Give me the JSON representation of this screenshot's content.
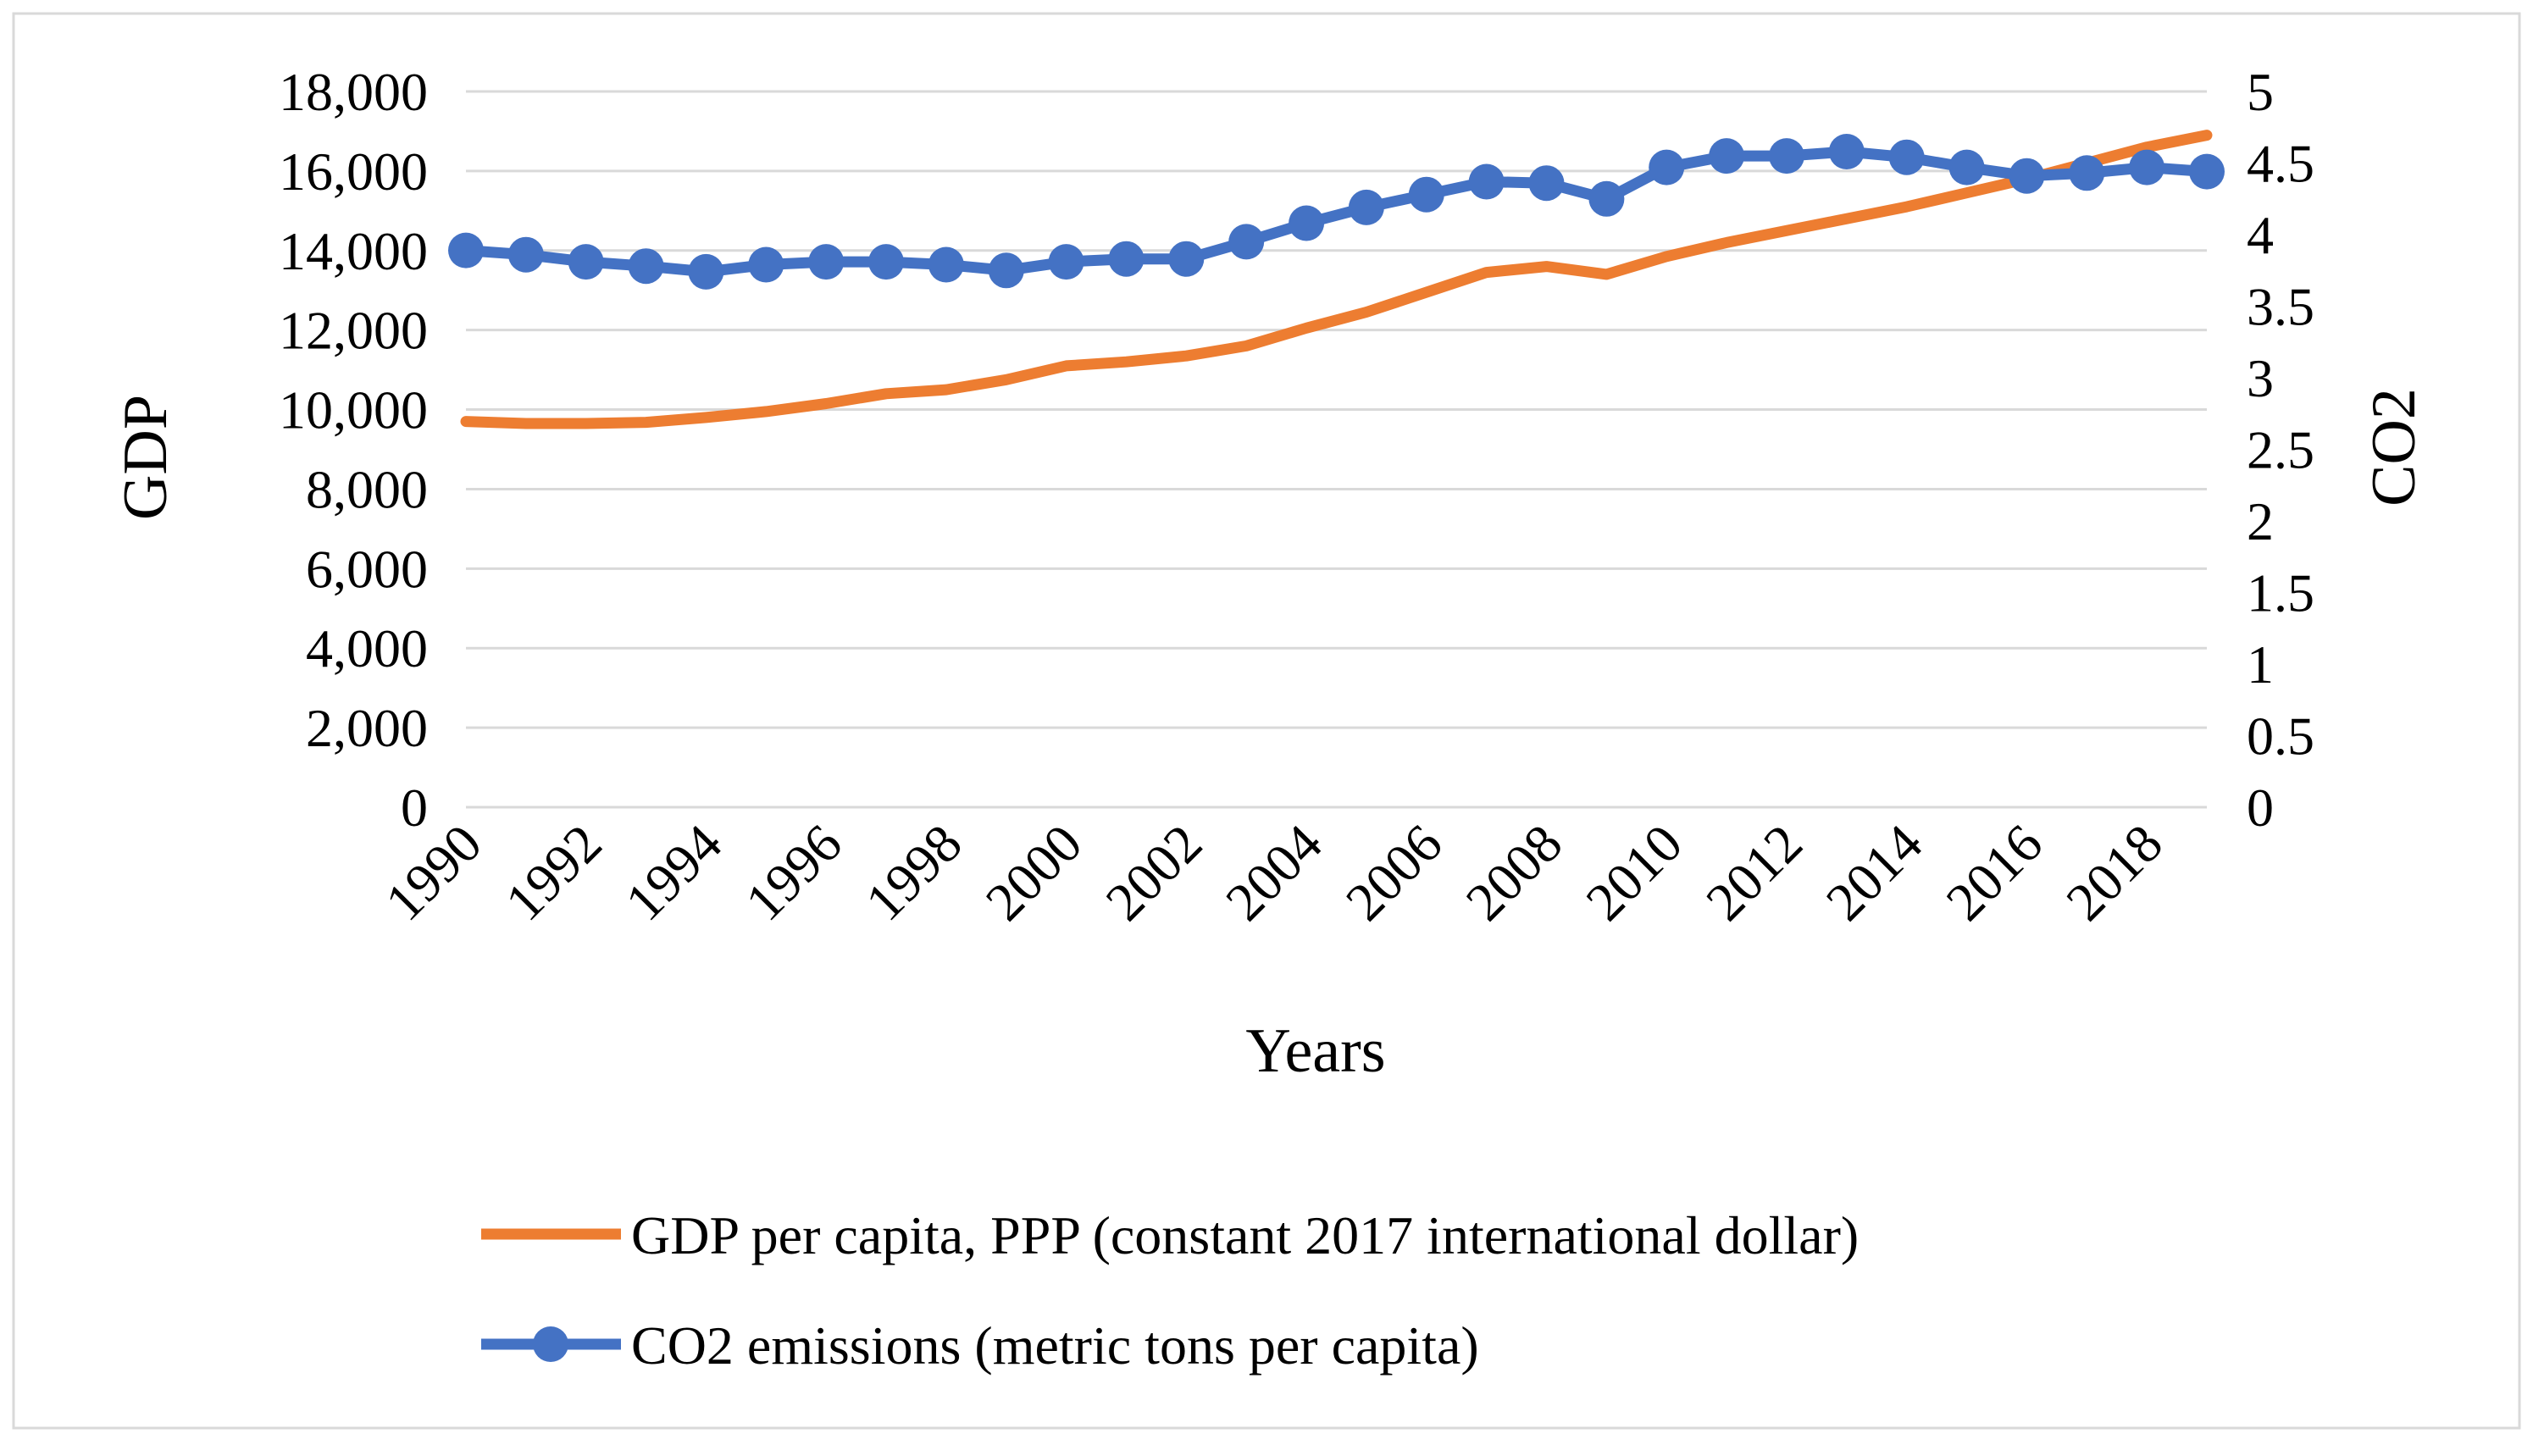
{
  "chart_data": {
    "type": "line",
    "x_label": "Years",
    "y_label_left": "GDP",
    "y_label_right": "CO2",
    "x": [
      1990,
      1991,
      1992,
      1993,
      1994,
      1995,
      1996,
      1997,
      1998,
      1999,
      2000,
      2001,
      2002,
      2003,
      2004,
      2005,
      2006,
      2007,
      2008,
      2009,
      2010,
      2011,
      2012,
      2013,
      2014,
      2015,
      2016,
      2017,
      2018,
      2019
    ],
    "x_tick_labels": [
      "1990",
      "1992",
      "1994",
      "1996",
      "1998",
      "2000",
      "2002",
      "2004",
      "2006",
      "2008",
      "2010",
      "2012",
      "2014",
      "2016",
      "2018"
    ],
    "y_left_range": [
      0,
      18000
    ],
    "y_left_ticks": [
      "0",
      "2,000",
      "4,000",
      "6,000",
      "8,000",
      "10,000",
      "12,000",
      "14,000",
      "16,000",
      "18,000"
    ],
    "y_right_range": [
      0,
      5
    ],
    "y_right_ticks": [
      "0",
      "0.5",
      "1",
      "1.5",
      "2",
      "2.5",
      "3",
      "3.5",
      "4",
      "4.5",
      "5"
    ],
    "grid": "horizontal",
    "legend_position": "bottom",
    "series": [
      {
        "name": "GDP per capita, PPP (constant 2017 international dollar)",
        "axis": "left",
        "color": "#ED7D31",
        "marker": "none",
        "values": [
          9700,
          9650,
          9650,
          9680,
          9800,
          9950,
          10150,
          10400,
          10500,
          10750,
          11100,
          11200,
          11350,
          11600,
          12050,
          12450,
          12950,
          13450,
          13600,
          13400,
          13850,
          14200,
          14500,
          14800,
          15100,
          15450,
          15800,
          16200,
          16600,
          16900
        ]
      },
      {
        "name": "CO2 emissions (metric tons per capita)",
        "axis": "right",
        "color": "#4472C4",
        "marker": "circle",
        "values": [
          3.89,
          3.86,
          3.81,
          3.78,
          3.74,
          3.79,
          3.81,
          3.81,
          3.79,
          3.75,
          3.81,
          3.83,
          3.83,
          3.95,
          4.08,
          4.19,
          4.28,
          4.37,
          4.36,
          4.25,
          4.47,
          4.55,
          4.55,
          4.58,
          4.54,
          4.47,
          4.41,
          4.43,
          4.47,
          4.44
        ]
      }
    ]
  }
}
